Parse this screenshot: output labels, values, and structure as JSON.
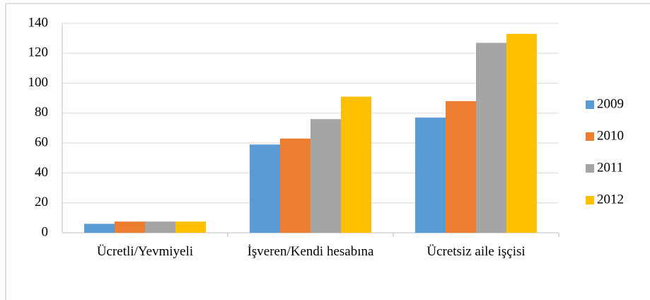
{
  "chart_data": {
    "type": "bar",
    "categories": [
      "Ücretli/Yevmiyeli",
      "İşveren/Kendi hesabına",
      "Ücretsiz aile işçisi"
    ],
    "series": [
      {
        "name": "2009",
        "color": "#5b9bd5",
        "values": [
          6,
          59,
          77
        ]
      },
      {
        "name": "2010",
        "color": "#ed7d31",
        "values": [
          7.5,
          63,
          88
        ]
      },
      {
        "name": "2011",
        "color": "#a5a5a5",
        "values": [
          7.5,
          76,
          127
        ]
      },
      {
        "name": "2012",
        "color": "#ffc000",
        "values": [
          7.5,
          91,
          133
        ]
      }
    ],
    "ylim": [
      0,
      140
    ],
    "yticks": [
      0,
      20,
      40,
      60,
      80,
      100,
      120,
      140
    ],
    "grid": true,
    "legend": "right"
  }
}
